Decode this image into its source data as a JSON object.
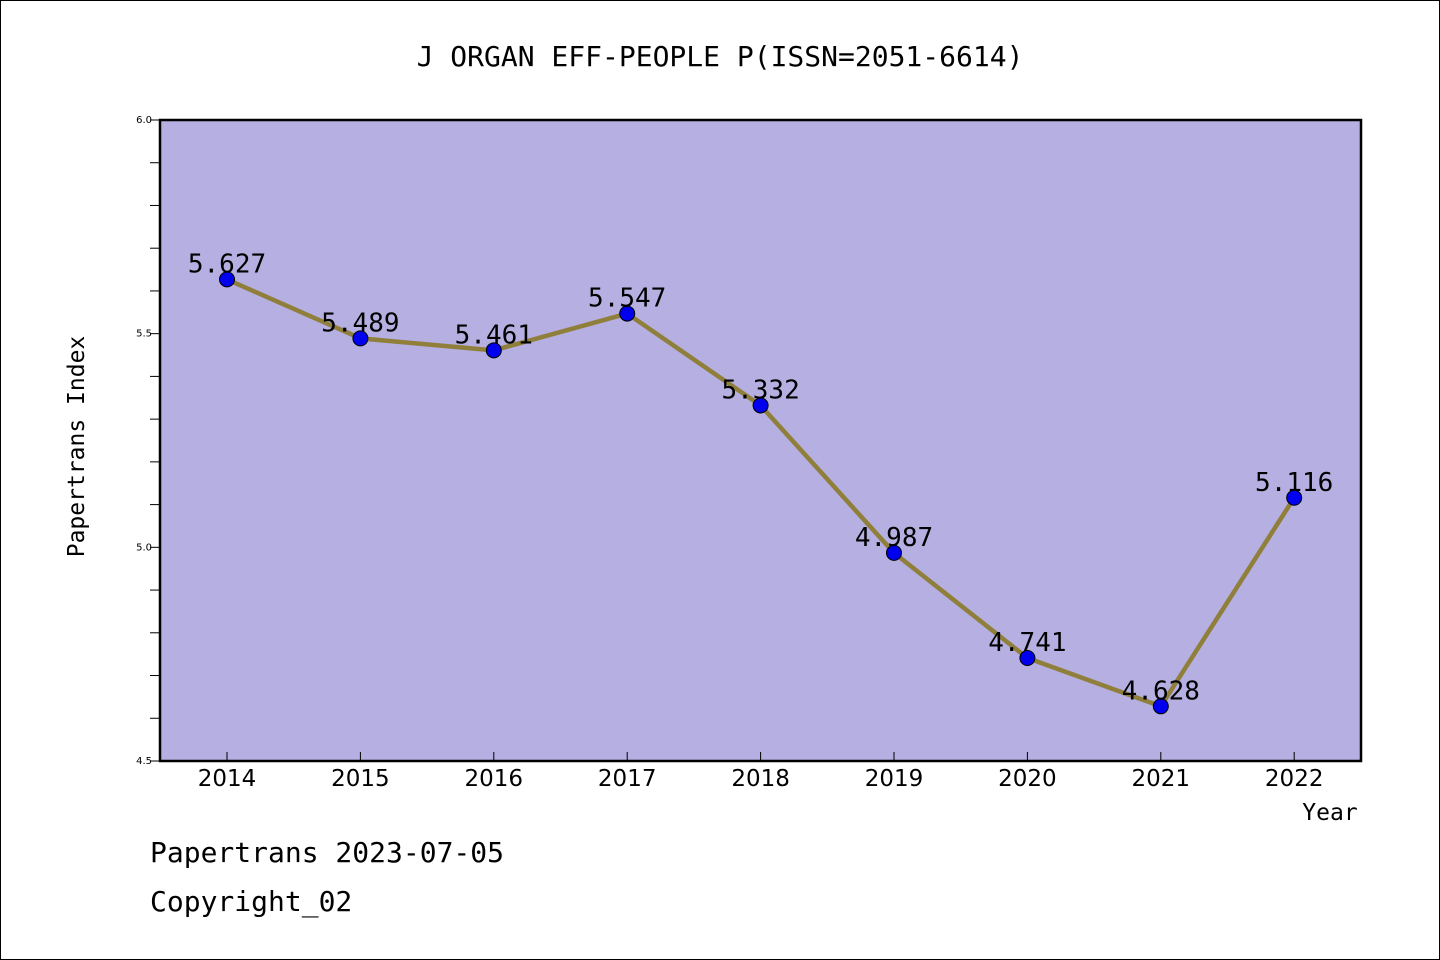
{
  "chart_data": {
    "type": "line",
    "title": "J ORGAN EFF-PEOPLE P(ISSN=2051-6614)",
    "xlabel": "Year",
    "ylabel": "Papertrans Index",
    "categories": [
      "2014",
      "2015",
      "2016",
      "2017",
      "2018",
      "2019",
      "2020",
      "2021",
      "2022"
    ],
    "series": [
      {
        "values": [
          5.627,
          5.489,
          5.461,
          5.547,
          5.332,
          4.987,
          4.741,
          4.628,
          5.116
        ]
      }
    ],
    "data_labels": [
      "5.627",
      "5.489",
      "5.461",
      "5.547",
      "5.332",
      "4.987",
      "4.741",
      "4.628",
      "5.116"
    ],
    "ylim": [
      4.5,
      6.0
    ],
    "y_ticks": [
      "4.5",
      "5.0",
      "5.5",
      "6.0"
    ],
    "grid": false,
    "colors": {
      "plot_background": "#b5afe2",
      "line": "#8f7f3b",
      "marker": "#0000ee"
    }
  },
  "footer": {
    "line1": "Papertrans 2023-07-05",
    "line2": "Copyright_02"
  }
}
